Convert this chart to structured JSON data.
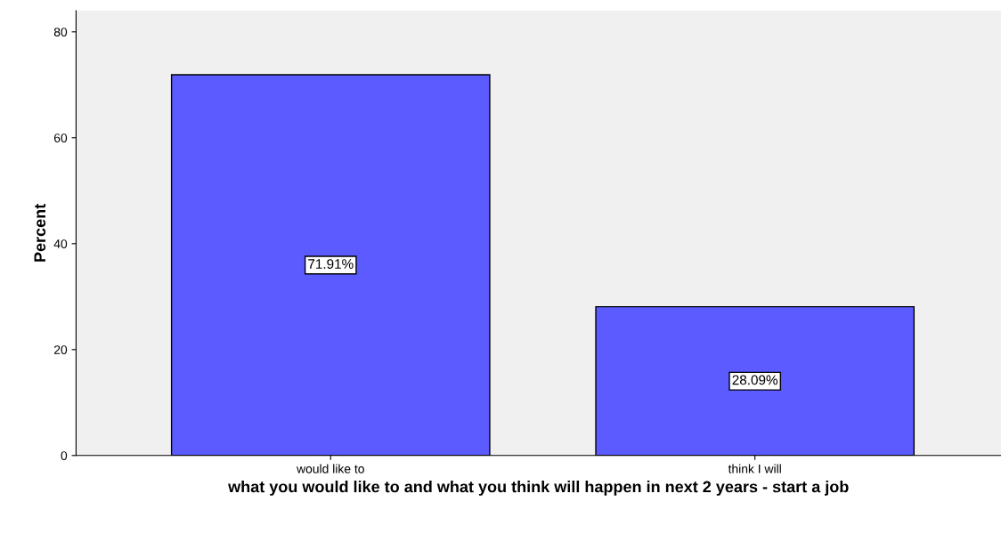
{
  "chart_data": {
    "type": "bar",
    "xlabel": "what you would like to and what you think will happen in next 2 years - start a job",
    "ylabel": "Percent",
    "categories": [
      "would like to",
      "think I will"
    ],
    "values": [
      71.91,
      28.09
    ],
    "color": "#5b5bff",
    "value_labels": [
      "71.91%",
      "28.09%"
    ],
    "ylim": [
      0,
      84
    ],
    "yticks": [
      0,
      20,
      40,
      60,
      80
    ],
    "grid": false,
    "legend": false
  }
}
